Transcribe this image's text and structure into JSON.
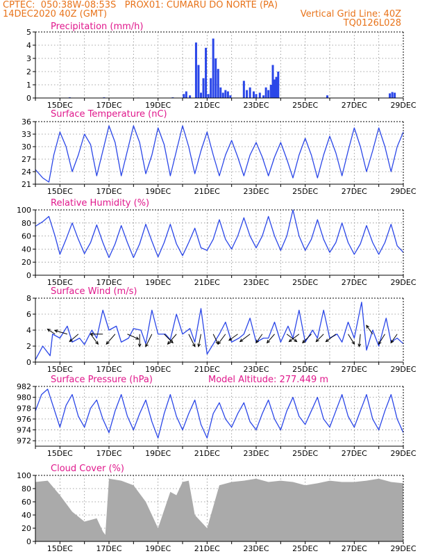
{
  "header": {
    "line1": "CPTEC:  050:38W-08:53S   PROX01: CUMARU DO NORTE (PA)",
    "line2_left": "14DEC2020 40Z (GMT)",
    "line2_right": "Vertical Grid Line: 40Z",
    "line3_right": "TQ0126L028"
  },
  "colors": {
    "header": "#e8731a",
    "title": "#e0188c",
    "line": "#2a46e8",
    "cloud": "#aaaaaa",
    "grid": "#888888",
    "arrow": "#000000"
  },
  "chart_data": [
    {
      "type": "bar",
      "title": "Precipitation (mm/h)",
      "x_tick_labels": [
        "15DEC",
        "17DEC",
        "19DEC",
        "21DEC",
        "23DEC",
        "25DEC",
        "27DEC",
        "29DEC"
      ],
      "x_tick_days": [
        15,
        17,
        19,
        21,
        23,
        25,
        27,
        29
      ],
      "xlim": [
        14,
        29
      ],
      "ylim": [
        0,
        5
      ],
      "yticks": [
        0,
        1,
        2,
        3,
        4,
        5
      ],
      "x": [
        15.4,
        16.8,
        18.2,
        19.6,
        20.05,
        20.15,
        20.3,
        20.55,
        20.65,
        20.75,
        20.85,
        20.95,
        21.05,
        21.15,
        21.25,
        21.35,
        21.45,
        21.55,
        21.65,
        21.75,
        21.85,
        21.95,
        22.5,
        22.62,
        22.75,
        22.9,
        23.0,
        23.15,
        23.3,
        23.4,
        23.5,
        23.6,
        23.68,
        23.75,
        23.82,
        23.9,
        25.9,
        28.45,
        28.55,
        28.65
      ],
      "values": [
        0.05,
        0.05,
        0.03,
        0.05,
        0.3,
        0.5,
        0.2,
        4.2,
        2.5,
        0.4,
        1.5,
        3.8,
        0.3,
        1.5,
        4.5,
        3.0,
        2.2,
        0.8,
        0.4,
        0.6,
        0.5,
        0.2,
        1.3,
        0.6,
        0.8,
        0.5,
        0.3,
        0.4,
        0.2,
        0.8,
        0.6,
        1.0,
        2.5,
        1.4,
        1.6,
        2.0,
        0.2,
        0.35,
        0.45,
        0.4
      ]
    },
    {
      "type": "line",
      "title": "Surface Temperature (nC)",
      "x_tick_labels": [
        "15DEC",
        "17DEC",
        "19DEC",
        "21DEC",
        "23DEC",
        "25DEC",
        "27DEC",
        "29DEC"
      ],
      "x_tick_days": [
        15,
        17,
        19,
        21,
        23,
        25,
        27,
        29
      ],
      "xlim": [
        14,
        29
      ],
      "ylim": [
        21,
        36
      ],
      "yticks": [
        21,
        24,
        27,
        30,
        33,
        36
      ],
      "x": [
        14,
        14.3,
        14.55,
        14.75,
        15.0,
        15.25,
        15.5,
        15.75,
        16.0,
        16.25,
        16.5,
        16.75,
        17.0,
        17.25,
        17.5,
        17.75,
        18.0,
        18.25,
        18.5,
        18.75,
        19.0,
        19.25,
        19.5,
        19.75,
        20.0,
        20.25,
        20.5,
        20.75,
        21.0,
        21.25,
        21.5,
        21.75,
        22.0,
        22.25,
        22.5,
        22.75,
        23.0,
        23.25,
        23.5,
        23.75,
        24.0,
        24.25,
        24.5,
        24.75,
        25.0,
        25.25,
        25.5,
        25.75,
        26.0,
        26.25,
        26.5,
        26.75,
        27.0,
        27.25,
        27.5,
        27.75,
        28.0,
        28.25,
        28.5,
        28.75,
        29.0
      ],
      "values": [
        24.5,
        22.5,
        21.5,
        28.0,
        33.5,
        30.0,
        24.0,
        28.0,
        33.0,
        30.5,
        23.0,
        29.0,
        35.0,
        31.0,
        23.0,
        29.0,
        35.0,
        31.0,
        23.5,
        28.0,
        34.5,
        30.5,
        23.0,
        29.0,
        35.0,
        30.0,
        23.5,
        29.0,
        33.5,
        28.0,
        23.0,
        28.0,
        31.5,
        27.5,
        23.0,
        28.0,
        31.0,
        27.5,
        23.0,
        27.5,
        31.0,
        27.0,
        22.5,
        28.0,
        32.0,
        28.0,
        22.5,
        28.0,
        32.5,
        28.5,
        23.0,
        29.0,
        34.5,
        30.0,
        24.0,
        29.0,
        34.5,
        30.0,
        24.0,
        30.0,
        33.5
      ]
    },
    {
      "type": "line",
      "title": "Relative Humidity (%)",
      "x_tick_labels": [
        "15DEC",
        "17DEC",
        "19DEC",
        "21DEC",
        "23DEC",
        "25DEC",
        "27DEC",
        "29DEC"
      ],
      "x_tick_days": [
        15,
        17,
        19,
        21,
        23,
        25,
        27,
        29
      ],
      "xlim": [
        14,
        29
      ],
      "ylim": [
        0,
        100
      ],
      "yticks": [
        0,
        20,
        40,
        60,
        80,
        100
      ],
      "x": [
        14,
        14.3,
        14.55,
        14.8,
        15.0,
        15.25,
        15.5,
        15.75,
        16.0,
        16.25,
        16.5,
        16.75,
        17.0,
        17.25,
        17.5,
        17.75,
        18.0,
        18.25,
        18.5,
        18.75,
        19.0,
        19.25,
        19.5,
        19.75,
        20.0,
        20.25,
        20.5,
        20.75,
        21.0,
        21.25,
        21.5,
        21.75,
        22.0,
        22.25,
        22.5,
        22.75,
        23.0,
        23.25,
        23.5,
        23.75,
        24.0,
        24.25,
        24.5,
        24.75,
        25.0,
        25.25,
        25.5,
        25.75,
        26.0,
        26.25,
        26.5,
        26.75,
        27.0,
        27.25,
        27.5,
        27.75,
        28.0,
        28.25,
        28.5,
        28.75,
        29.0
      ],
      "values": [
        75,
        82,
        90,
        60,
        32,
        55,
        80,
        55,
        33,
        50,
        77,
        50,
        27,
        48,
        76,
        50,
        27,
        48,
        78,
        52,
        28,
        50,
        78,
        48,
        30,
        50,
        72,
        42,
        38,
        55,
        85,
        55,
        40,
        60,
        88,
        60,
        42,
        60,
        90,
        60,
        38,
        60,
        100,
        60,
        38,
        55,
        85,
        55,
        35,
        50,
        80,
        50,
        32,
        48,
        76,
        50,
        32,
        50,
        78,
        45,
        35
      ]
    },
    {
      "type": "line",
      "title": "Surface Wind (m/s)",
      "x_tick_labels": [
        "15DEC",
        "17DEC",
        "19DEC",
        "21DEC",
        "23DEC",
        "25DEC",
        "27DEC",
        "29DEC"
      ],
      "x_tick_days": [
        15,
        17,
        19,
        21,
        23,
        25,
        27,
        29
      ],
      "xlim": [
        14,
        29
      ],
      "ylim": [
        0,
        8
      ],
      "yticks": [
        0,
        2,
        4,
        6,
        8
      ],
      "x": [
        14,
        14.3,
        14.6,
        14.7,
        15.0,
        15.3,
        15.5,
        15.8,
        16.0,
        16.3,
        16.5,
        16.75,
        17.0,
        17.3,
        17.5,
        17.8,
        18.0,
        18.3,
        18.5,
        18.75,
        19.0,
        19.3,
        19.5,
        19.75,
        20.0,
        20.3,
        20.5,
        20.75,
        21.0,
        21.3,
        21.5,
        21.75,
        22.0,
        22.3,
        22.5,
        22.75,
        23.0,
        23.3,
        23.5,
        23.75,
        24.0,
        24.3,
        24.5,
        24.75,
        25.0,
        25.3,
        25.5,
        25.75,
        26.0,
        26.3,
        26.5,
        26.75,
        27.0,
        27.3,
        27.5,
        27.75,
        28.0,
        28.3,
        28.5,
        28.75,
        29.0
      ],
      "values": [
        0.3,
        2.0,
        0.8,
        3.5,
        3.0,
        4.5,
        2.5,
        3.0,
        2.2,
        4.0,
        3.0,
        6.5,
        4.0,
        4.5,
        2.5,
        3.0,
        4.2,
        4.0,
        2.3,
        6.5,
        3.5,
        3.5,
        2.8,
        6.0,
        3.5,
        4.2,
        2.5,
        6.7,
        1.0,
        2.5,
        3.5,
        5.0,
        2.5,
        3.0,
        3.5,
        5.5,
        2.5,
        3.0,
        3.0,
        5.0,
        2.5,
        4.5,
        3.0,
        6.5,
        2.5,
        4.0,
        3.0,
        6.5,
        3.0,
        3.5,
        2.5,
        5.0,
        3.0,
        7.5,
        1.5,
        4.0,
        2.0,
        5.5,
        2.5,
        3.0,
        2.3
      ],
      "arrows": [
        {
          "day": 14.8,
          "u": -0.6,
          "v": 0.4
        },
        {
          "day": 15.3,
          "u": -1.0,
          "v": 0.3
        },
        {
          "day": 15.75,
          "u": -0.7,
          "v": -0.6
        },
        {
          "day": 16.25,
          "u": 0.6,
          "v": -0.8
        },
        {
          "day": 16.75,
          "u": -1.0,
          "v": 0.0
        },
        {
          "day": 17.25,
          "u": -0.7,
          "v": -0.8
        },
        {
          "day": 17.75,
          "u": 0.9,
          "v": -0.4
        },
        {
          "day": 18.25,
          "u": 0.0,
          "v": -1.0
        },
        {
          "day": 18.75,
          "u": -0.5,
          "v": -1.0
        },
        {
          "day": 19.25,
          "u": 0.7,
          "v": -0.7
        },
        {
          "day": 19.75,
          "u": -0.7,
          "v": -0.8
        },
        {
          "day": 20.25,
          "u": 0.5,
          "v": -1.0
        },
        {
          "day": 20.75,
          "u": -0.2,
          "v": -1.0
        },
        {
          "day": 21.25,
          "u": 0.4,
          "v": -0.8
        },
        {
          "day": 21.75,
          "u": -0.6,
          "v": -0.8
        },
        {
          "day": 22.25,
          "u": -0.7,
          "v": -0.5
        },
        {
          "day": 22.75,
          "u": -0.8,
          "v": -0.6
        },
        {
          "day": 23.25,
          "u": -0.5,
          "v": -0.7
        },
        {
          "day": 23.75,
          "u": -0.6,
          "v": -0.7
        },
        {
          "day": 24.25,
          "u": 0.8,
          "v": -0.6
        },
        {
          "day": 24.75,
          "u": -0.8,
          "v": -0.6
        },
        {
          "day": 25.25,
          "u": -0.7,
          "v": -0.7
        },
        {
          "day": 25.75,
          "u": -0.6,
          "v": -0.6
        },
        {
          "day": 26.25,
          "u": -0.8,
          "v": -0.6
        },
        {
          "day": 26.75,
          "u": 0.5,
          "v": -0.8
        },
        {
          "day": 27.25,
          "u": -0.1,
          "v": -1.0
        },
        {
          "day": 27.75,
          "u": -0.5,
          "v": 0.7
        },
        {
          "day": 28.25,
          "u": -0.5,
          "v": -0.8
        },
        {
          "day": 28.75,
          "u": -0.5,
          "v": -0.7
        }
      ]
    },
    {
      "type": "line",
      "title": "Surface Pressure (hPa)",
      "annotation": "Model Altitude: 277.449  m",
      "x_tick_labels": [
        "15DEC",
        "17DEC",
        "19DEC",
        "21DEC",
        "23DEC",
        "25DEC",
        "27DEC",
        "29DEC"
      ],
      "x_tick_days": [
        15,
        17,
        19,
        21,
        23,
        25,
        27,
        29
      ],
      "xlim": [
        14,
        29
      ],
      "ylim": [
        971,
        982
      ],
      "yticks": [
        972,
        974,
        976,
        978,
        980,
        982
      ],
      "x": [
        14,
        14.25,
        14.5,
        14.75,
        15.0,
        15.25,
        15.5,
        15.75,
        16.0,
        16.25,
        16.5,
        16.75,
        17.0,
        17.25,
        17.5,
        17.75,
        18.0,
        18.25,
        18.5,
        18.75,
        19.0,
        19.25,
        19.5,
        19.75,
        20.0,
        20.25,
        20.5,
        20.75,
        21.0,
        21.25,
        21.5,
        21.75,
        22.0,
        22.25,
        22.5,
        22.75,
        23.0,
        23.25,
        23.5,
        23.75,
        24.0,
        24.25,
        24.5,
        24.75,
        25.0,
        25.25,
        25.5,
        25.75,
        26.0,
        26.25,
        26.5,
        26.75,
        27.0,
        27.25,
        27.5,
        27.75,
        28.0,
        28.25,
        28.5,
        28.75,
        29.0
      ],
      "values": [
        977.5,
        980.5,
        981.5,
        978.0,
        974.5,
        978.5,
        980.5,
        976.5,
        974.5,
        978.0,
        979.5,
        976.0,
        973.5,
        977.5,
        980.5,
        976.5,
        974.0,
        977.0,
        979.5,
        975.5,
        972.5,
        977.0,
        980.5,
        976.5,
        974.0,
        977.0,
        979.5,
        975.0,
        972.5,
        977.0,
        979.0,
        976.0,
        974.5,
        977.0,
        979.0,
        975.5,
        974.0,
        977.0,
        979.5,
        976.0,
        974.0,
        977.5,
        980.0,
        976.5,
        975.0,
        977.5,
        980.0,
        976.0,
        974.5,
        977.5,
        980.5,
        976.5,
        974.5,
        977.5,
        980.5,
        976.0,
        974.0,
        977.5,
        980.5,
        976.0,
        973.5
      ]
    },
    {
      "type": "area",
      "title": "Cloud Cover (%)",
      "x_tick_labels": [
        "15DEC",
        "17DEC",
        "19DEC",
        "21DEC",
        "23DEC",
        "25DEC",
        "27DEC",
        "29DEC"
      ],
      "x_tick_days": [
        15,
        17,
        19,
        21,
        23,
        25,
        27,
        29
      ],
      "xlim": [
        14,
        29
      ],
      "ylim": [
        0,
        100
      ],
      "yticks": [
        0,
        20,
        40,
        60,
        80,
        100
      ],
      "x": [
        14,
        14.5,
        15.0,
        15.5,
        16.0,
        16.5,
        16.75,
        16.85,
        17.0,
        17.5,
        18.0,
        18.5,
        19.0,
        19.5,
        19.75,
        20.0,
        20.25,
        20.5,
        21.0,
        21.5,
        22.0,
        22.5,
        23.0,
        23.5,
        24.0,
        24.5,
        25.0,
        25.5,
        26.0,
        26.5,
        27.0,
        27.5,
        28.0,
        28.5,
        29.0
      ],
      "values": [
        90,
        92,
        70,
        45,
        30,
        35,
        15,
        10,
        95,
        92,
        85,
        60,
        20,
        75,
        70,
        90,
        92,
        40,
        20,
        85,
        90,
        92,
        95,
        90,
        92,
        90,
        85,
        88,
        92,
        90,
        90,
        92,
        95,
        90,
        88
      ]
    }
  ]
}
